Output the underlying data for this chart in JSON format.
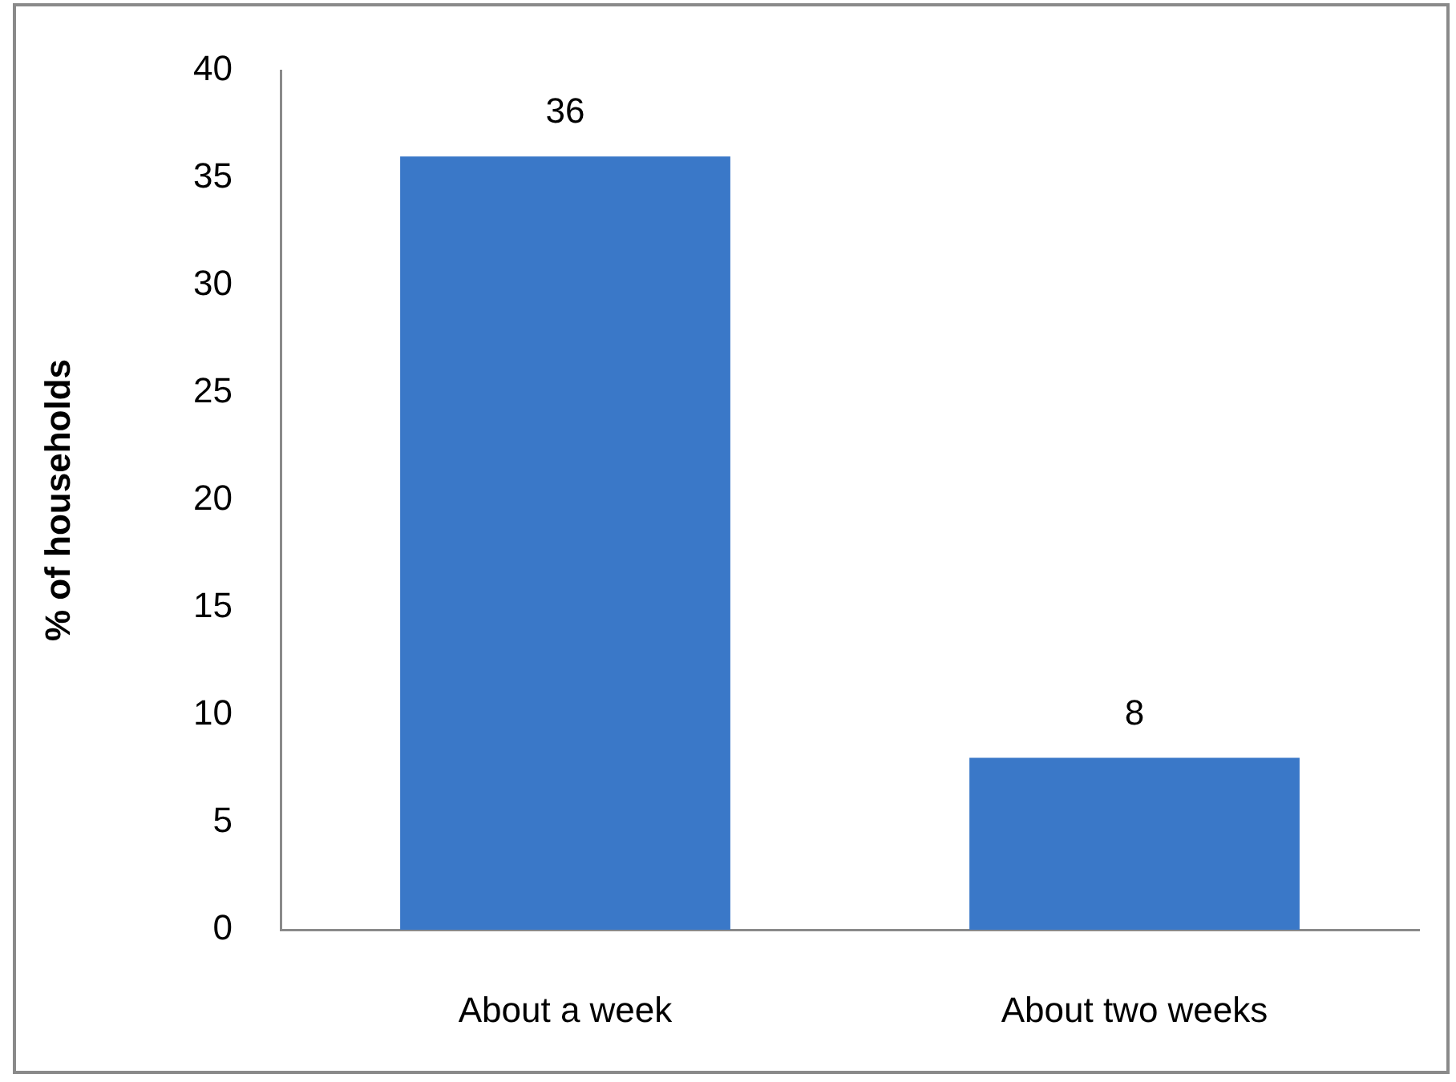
{
  "chart_data": {
    "type": "bar",
    "ylabel": "% of households",
    "categories": [
      "About a week",
      "About two weeks"
    ],
    "values": [
      36,
      8
    ],
    "color": "#3a78c8",
    "ylim": [
      0,
      40
    ],
    "yticks": [
      0,
      5,
      10,
      15,
      20,
      25,
      30,
      35,
      40
    ],
    "grid": false,
    "legend": false,
    "data_labels": true
  }
}
